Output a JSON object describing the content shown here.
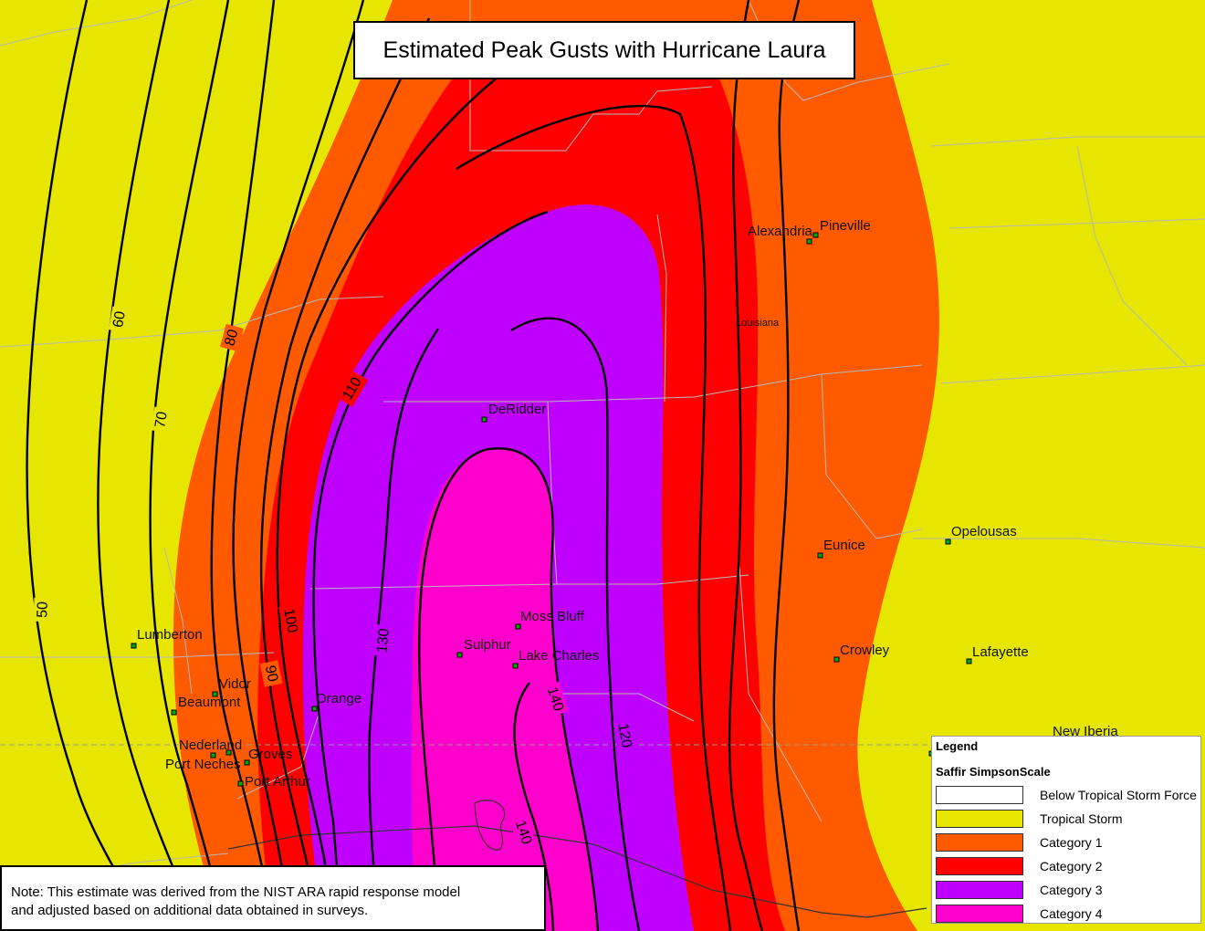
{
  "title": "Estimated Peak Gusts with Hurricane Laura",
  "note": {
    "line1": "Note: This estimate was derived from the NIST ARA rapid response model",
    "line2": "and adjusted based on additional data obtained in surveys."
  },
  "legend": {
    "title": "Legend",
    "subtitle": "Saffir SimpsonScale",
    "items": [
      {
        "label": "Below Tropical Storm Force",
        "color": "#ffffff"
      },
      {
        "label": "Tropical Storm",
        "color": "#e6e600"
      },
      {
        "label": "Category 1",
        "color": "#ff5a00"
      },
      {
        "label": "Category 2",
        "color": "#ff0000"
      },
      {
        "label": "Category 3",
        "color": "#c000ff"
      },
      {
        "label": "Category 4",
        "color": "#ff00cc"
      }
    ]
  },
  "map": {
    "state_label": "Louisiana",
    "cities": [
      {
        "name": "Alexandria"
      },
      {
        "name": "Pineville"
      },
      {
        "name": "DeRidder"
      },
      {
        "name": "Eunice"
      },
      {
        "name": "Opelousas"
      },
      {
        "name": "Moss Bluff"
      },
      {
        "name": "Sulphur"
      },
      {
        "name": "Lake Charles"
      },
      {
        "name": "Crowley"
      },
      {
        "name": "Lafayette"
      },
      {
        "name": "Lumberton"
      },
      {
        "name": "Vidor"
      },
      {
        "name": "Beaumont"
      },
      {
        "name": "Orange"
      },
      {
        "name": "Nederland"
      },
      {
        "name": "Groves"
      },
      {
        "name": "Port Neches"
      },
      {
        "name": "Port Arthur"
      },
      {
        "name": "New Iberia"
      }
    ],
    "contour_labels": [
      "50",
      "60",
      "70",
      "80",
      "90",
      "100",
      "110",
      "120",
      "130",
      "140",
      "140",
      "140"
    ]
  }
}
